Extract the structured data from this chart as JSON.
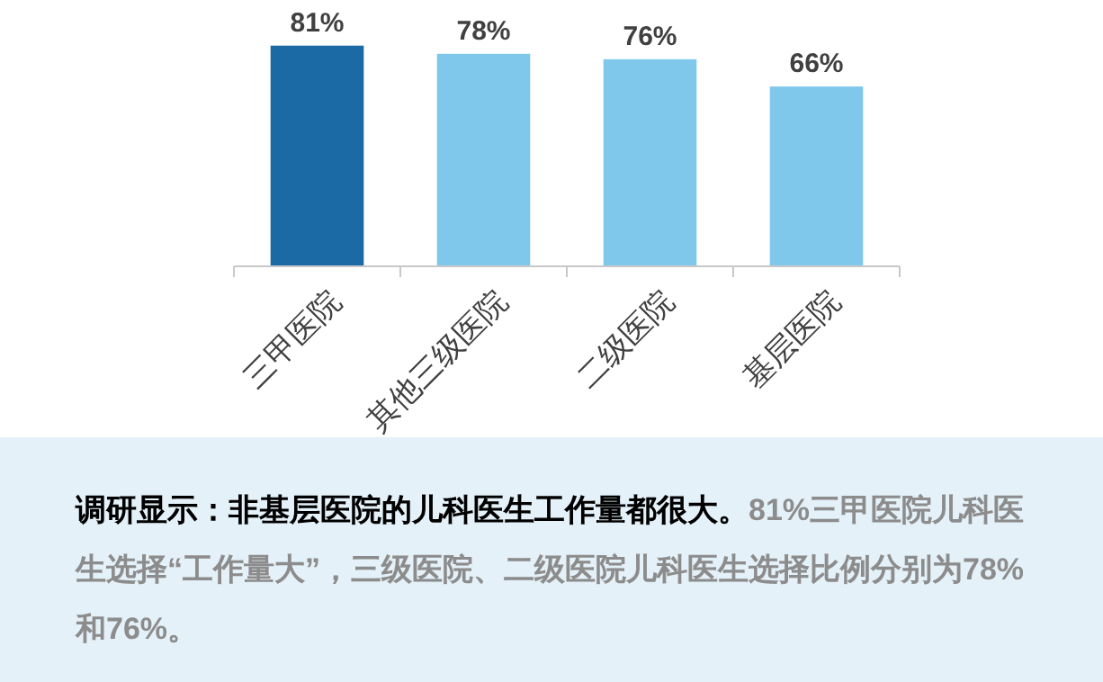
{
  "chart_data": {
    "type": "bar",
    "categories": [
      "三甲医院",
      "其他三级医院",
      "二级医院",
      "基层医院"
    ],
    "values": [
      81,
      78,
      76,
      66
    ],
    "colors": [
      "#1b6aa5",
      "#7fc8ec",
      "#7fc8ec",
      "#7fc8ec"
    ],
    "value_labels": [
      "81%",
      "78%",
      "76%",
      "66%"
    ],
    "annotations": [
      "调研显示：非基层医院的儿科医生工作量都很大。",
      "81%三甲医院儿科医生选择“工作量大”，三级医院、二级医院儿科医生选择比例分别为78%和76%。"
    ]
  }
}
